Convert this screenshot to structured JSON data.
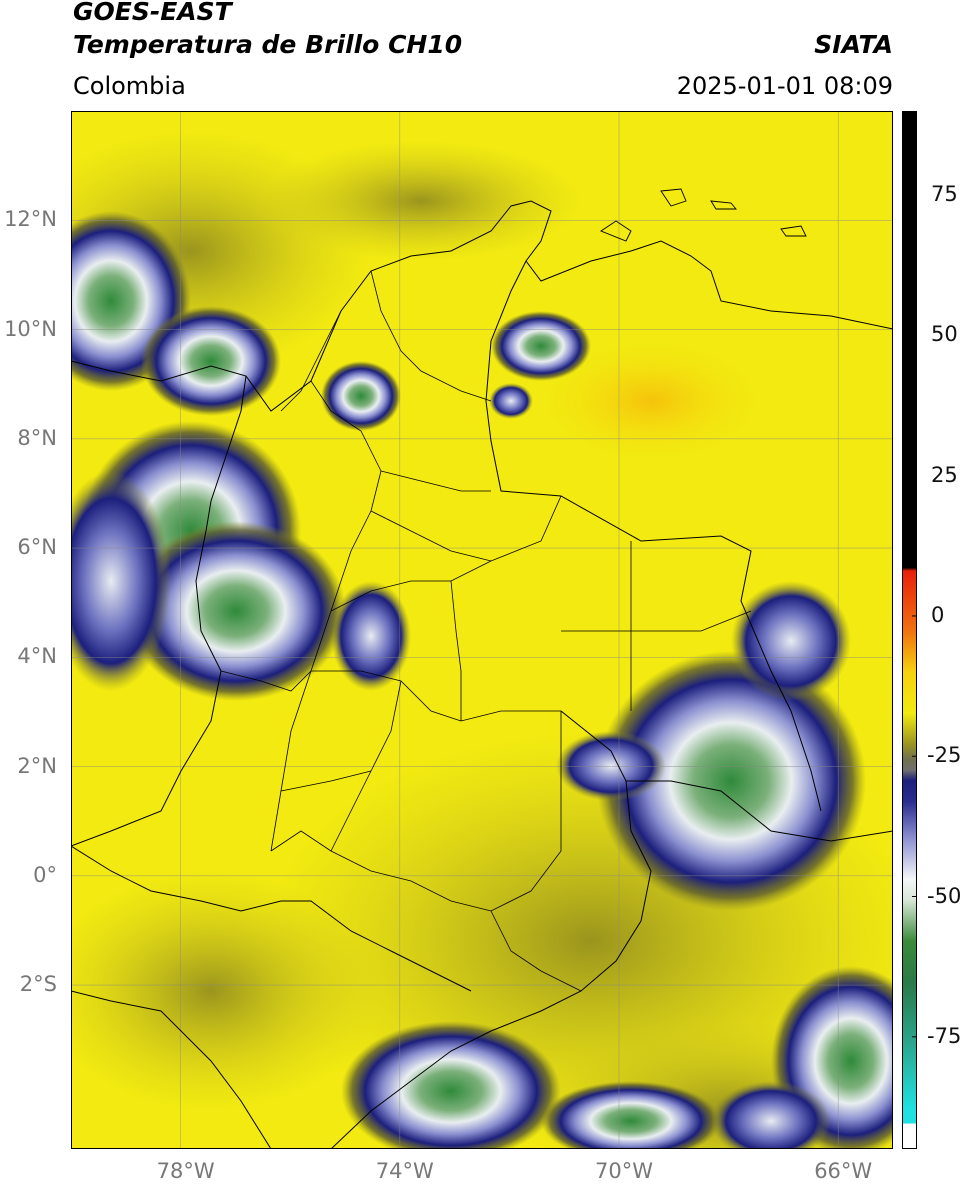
{
  "header": {
    "satellite": "GOES-EAST",
    "product": "Temperatura de Brillo CH10",
    "region": "Colombia",
    "agency": "SIATA",
    "datetime": "2025-01-01 08:09"
  },
  "map": {
    "projection": "plate-carree",
    "lon_range": [
      -80,
      -65
    ],
    "lat_range": [
      -5,
      14
    ],
    "lat_ticks": [
      {
        "value": 12,
        "label": "12°N"
      },
      {
        "value": 10,
        "label": "10°N"
      },
      {
        "value": 8,
        "label": "8°N"
      },
      {
        "value": 6,
        "label": "6°N"
      },
      {
        "value": 4,
        "label": "4°N"
      },
      {
        "value": 2,
        "label": "2°N"
      },
      {
        "value": 0,
        "label": "0°"
      },
      {
        "value": -2,
        "label": "2°S"
      }
    ],
    "lon_ticks": [
      {
        "value": -78,
        "label": "78°W"
      },
      {
        "value": -74,
        "label": "74°W"
      },
      {
        "value": -70,
        "label": "70°W"
      },
      {
        "value": -66,
        "label": "66°W"
      }
    ],
    "gridlines": true,
    "background_color": "#f2ea10"
  },
  "colorbar": {
    "range": [
      -95,
      90
    ],
    "ticks": [
      {
        "value": 75,
        "label": "75"
      },
      {
        "value": 50,
        "label": "50"
      },
      {
        "value": 25,
        "label": "25"
      },
      {
        "value": 0,
        "label": "0"
      },
      {
        "value": -25,
        "label": "-25"
      },
      {
        "value": -50,
        "label": "-50"
      },
      {
        "value": -75,
        "label": "-75"
      }
    ]
  }
}
